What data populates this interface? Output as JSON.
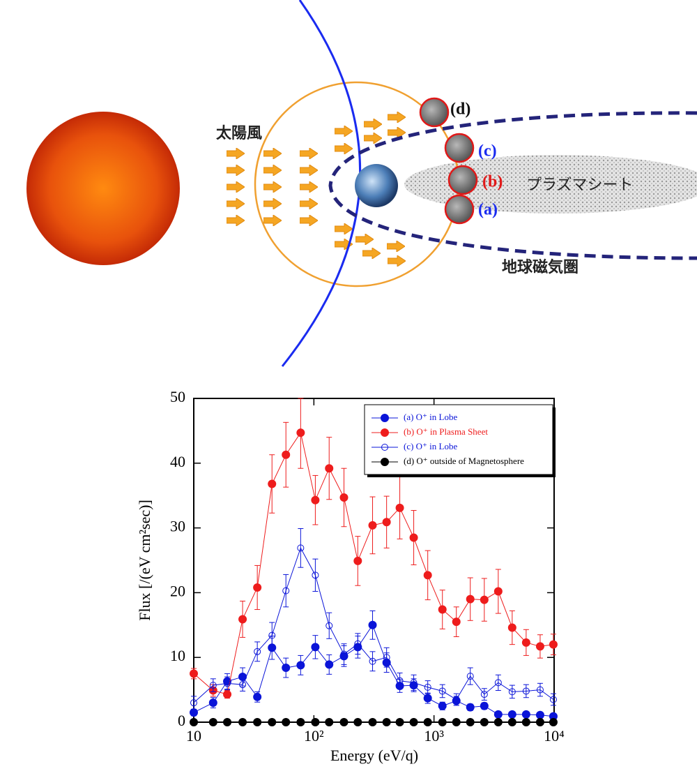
{
  "diagram": {
    "labels": [
      "太陽風",
      "プラズマシート",
      "地球磁気圏",
      "(d)",
      "(c)",
      "(b)",
      "(a)"
    ]
  },
  "chart_data": {
    "type": "line",
    "xlabel": "Energy (eV/q)",
    "ylabel": "Flux [/(eV cm²sec)]",
    "xlog": true,
    "xlim": [
      10,
      10000
    ],
    "xticks": [
      10,
      {
        "value": 100,
        "label": "10²"
      },
      {
        "value": 1000,
        "label": "10³"
      },
      {
        "value": 10000,
        "label": "10⁴"
      }
    ],
    "ylim": [
      0,
      50
    ],
    "yticks": [
      0,
      10,
      20,
      30,
      40,
      50
    ],
    "legend": "upper right",
    "x": [
      10,
      14.5,
      19.0,
      25.5,
      33.8,
      44.8,
      58.5,
      77.6,
      102.8,
      134,
      178,
      232,
      308,
      403,
      519,
      678,
      887,
      1175,
      1535,
      2005,
      2623,
      3427,
      4477,
      5850,
      7650,
      9860
    ],
    "series": [
      {
        "name": "(a) O⁺ in Lobe",
        "color": "#0a14d8",
        "marker": "filled",
        "values": [
          1.5,
          3.0,
          6.3,
          7.0,
          3.9,
          11.5,
          8.4,
          8.8,
          11.6,
          8.9,
          10.2,
          11.6,
          15.0,
          9.2,
          5.6,
          5.7,
          3.7,
          2.5,
          3.3,
          2.3,
          2.5,
          1.2,
          1.2,
          1.2,
          1.1,
          0.9
        ],
        "errors": [
          0.5,
          0.8,
          1.2,
          1.4,
          0.8,
          1.8,
          1.5,
          1.5,
          1.8,
          1.5,
          1.6,
          1.7,
          2.2,
          1.5,
          1.0,
          1.0,
          0.8,
          0.6,
          0.7,
          0.5,
          0.5,
          0.3,
          0.3,
          0.3,
          0.3,
          0.3
        ]
      },
      {
        "name": "(b) O⁺ in Plasma Sheet",
        "color": "#ee1c1c",
        "marker": "filled",
        "values": [
          7.5,
          4.9,
          4.3,
          15.9,
          20.8,
          36.8,
          41.3,
          44.7,
          34.3,
          39.2,
          34.7,
          24.9,
          30.4,
          30.9,
          33.1,
          28.5,
          22.7,
          17.4,
          15.5,
          19.0,
          18.9,
          20.2,
          14.6,
          12.3,
          11.7,
          12.0
        ],
        "errors": [
          0.8,
          0.9,
          0.6,
          2.8,
          3.4,
          4.5,
          5.0,
          5.5,
          3.8,
          4.8,
          4.5,
          3.8,
          4.4,
          4.0,
          4.8,
          4.2,
          3.8,
          3.0,
          2.3,
          3.3,
          3.3,
          3.4,
          2.6,
          2.0,
          1.8,
          1.6
        ]
      },
      {
        "name": "(c) O⁺ in Lobe",
        "color": "#0a14d8",
        "marker": "open",
        "values": [
          3.0,
          5.7,
          6.0,
          5.8,
          10.9,
          13.4,
          20.3,
          26.9,
          22.7,
          14.9,
          10.5,
          12.1,
          9.4,
          10.0,
          6.4,
          6.1,
          5.4,
          4.8,
          3.5,
          7.1,
          4.3,
          6.1,
          4.7,
          4.8,
          5.0,
          3.5
        ],
        "errors": [
          1.0,
          1.0,
          1.0,
          1.0,
          1.5,
          2.0,
          2.5,
          3.0,
          2.5,
          2.0,
          1.6,
          1.6,
          1.5,
          1.5,
          1.2,
          1.2,
          1.0,
          1.0,
          0.9,
          1.3,
          0.9,
          1.2,
          1.0,
          1.0,
          1.0,
          0.9
        ]
      },
      {
        "name": "(d) O⁺ outside of Magnetosphere",
        "color": "#000000",
        "marker": "filled",
        "values": [
          0,
          0,
          0,
          0,
          0,
          0,
          0,
          0,
          0,
          0,
          0,
          0,
          0,
          0,
          0,
          0,
          0,
          0,
          0,
          0,
          0,
          0,
          0,
          0,
          0,
          0
        ]
      }
    ]
  }
}
